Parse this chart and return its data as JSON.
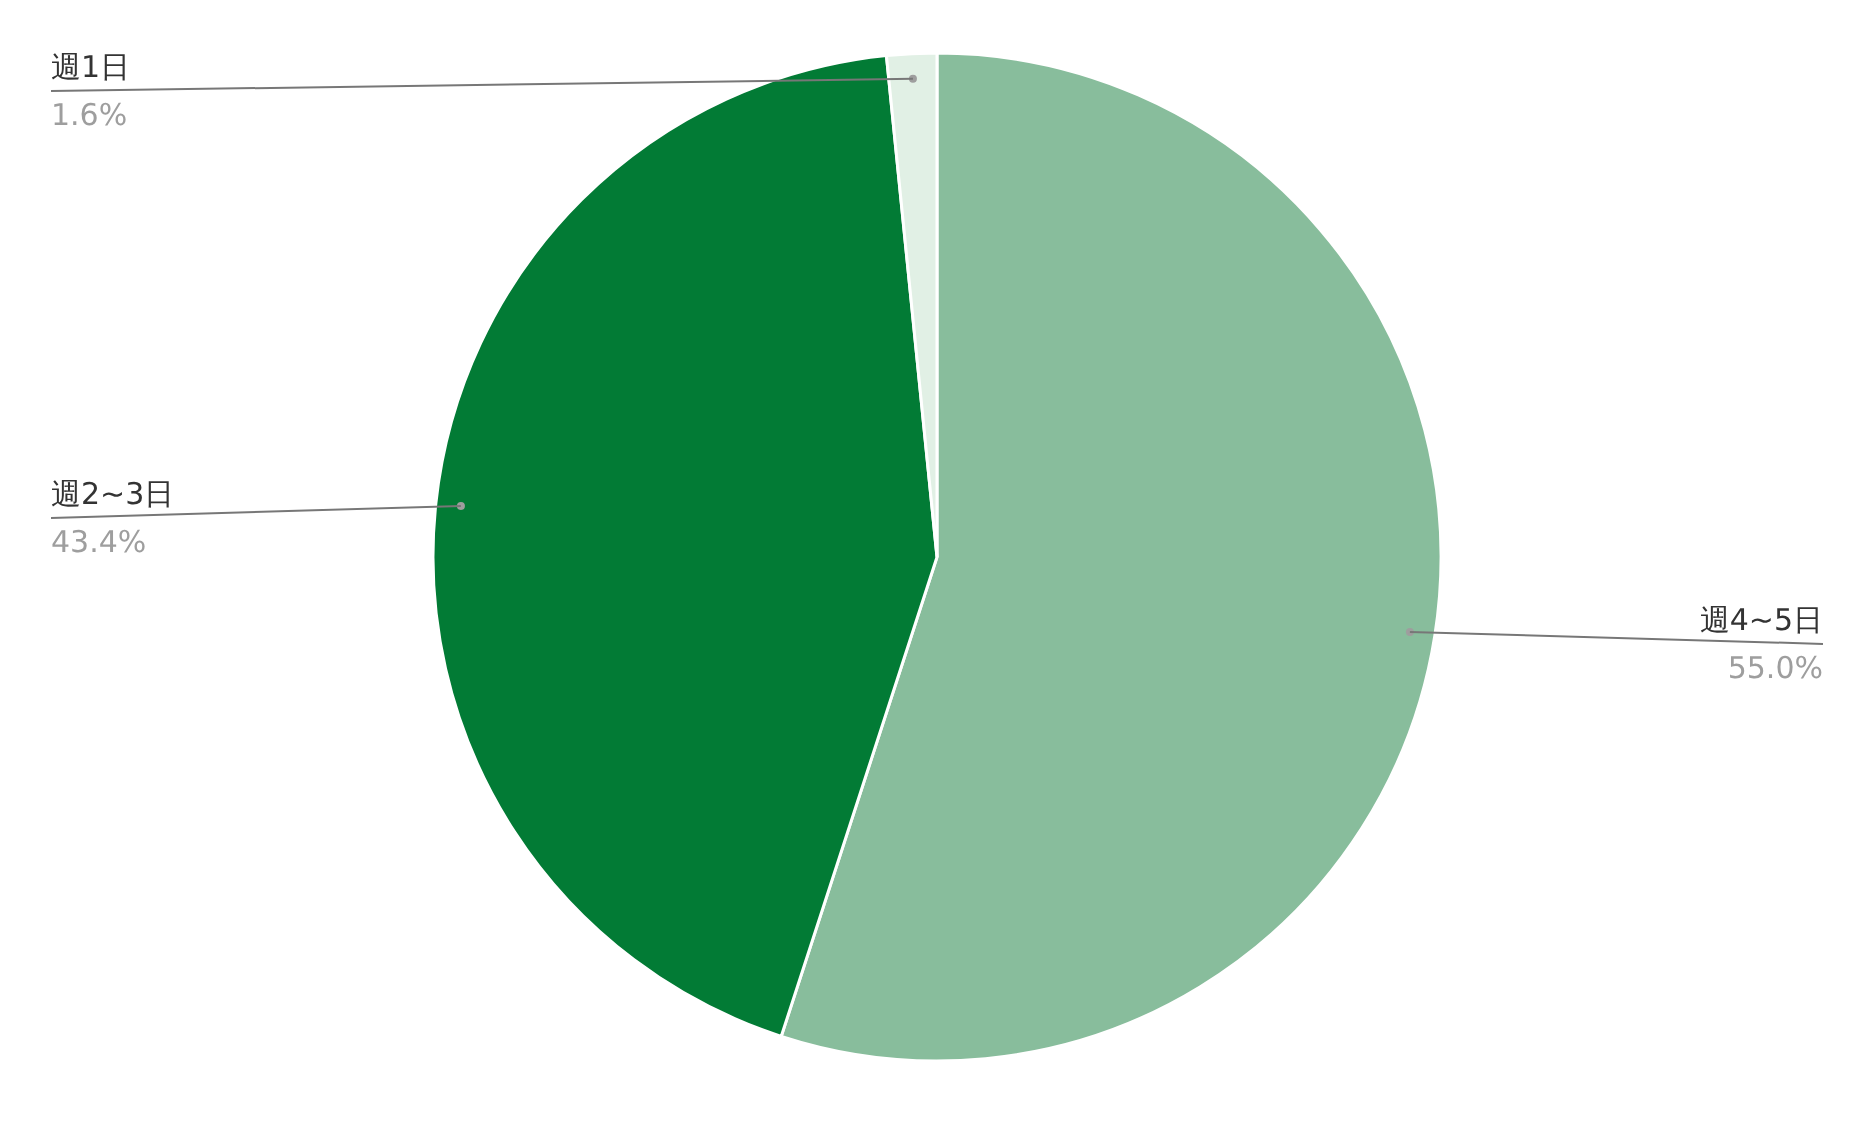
{
  "chart_data": {
    "type": "pie",
    "categories": [
      "週4~5日",
      "週2~3日",
      "週1日"
    ],
    "values": [
      55.0,
      43.4,
      1.6
    ],
    "colors": [
      "#88bd9c",
      "#027b35",
      "#e1f0e5"
    ],
    "value_labels": [
      "55.0%",
      "43.4%",
      "1.6%"
    ]
  }
}
